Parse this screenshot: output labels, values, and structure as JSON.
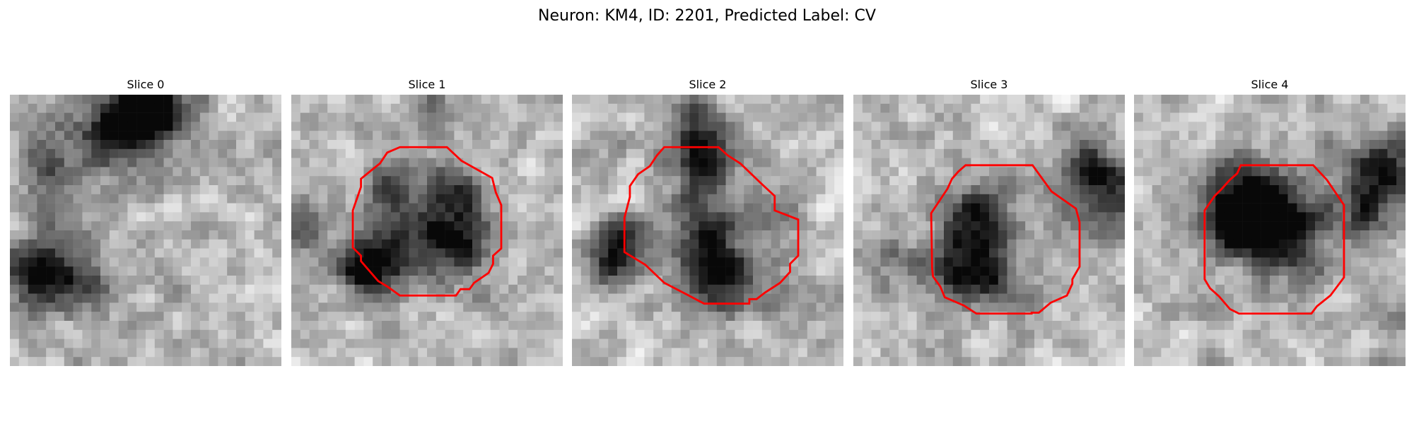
{
  "figure": {
    "title": "Neuron: KM4, ID: 2201, Predicted Label: CV",
    "colormap": "gray",
    "overlay_color": "#ff0000"
  },
  "slices": [
    {
      "label": "Slice 0",
      "has_roi": false
    },
    {
      "label": "Slice 1",
      "has_roi": true
    },
    {
      "label": "Slice 2",
      "has_roi": true
    },
    {
      "label": "Slice 3",
      "has_roi": true
    },
    {
      "label": "Slice 4",
      "has_roi": true
    }
  ]
}
